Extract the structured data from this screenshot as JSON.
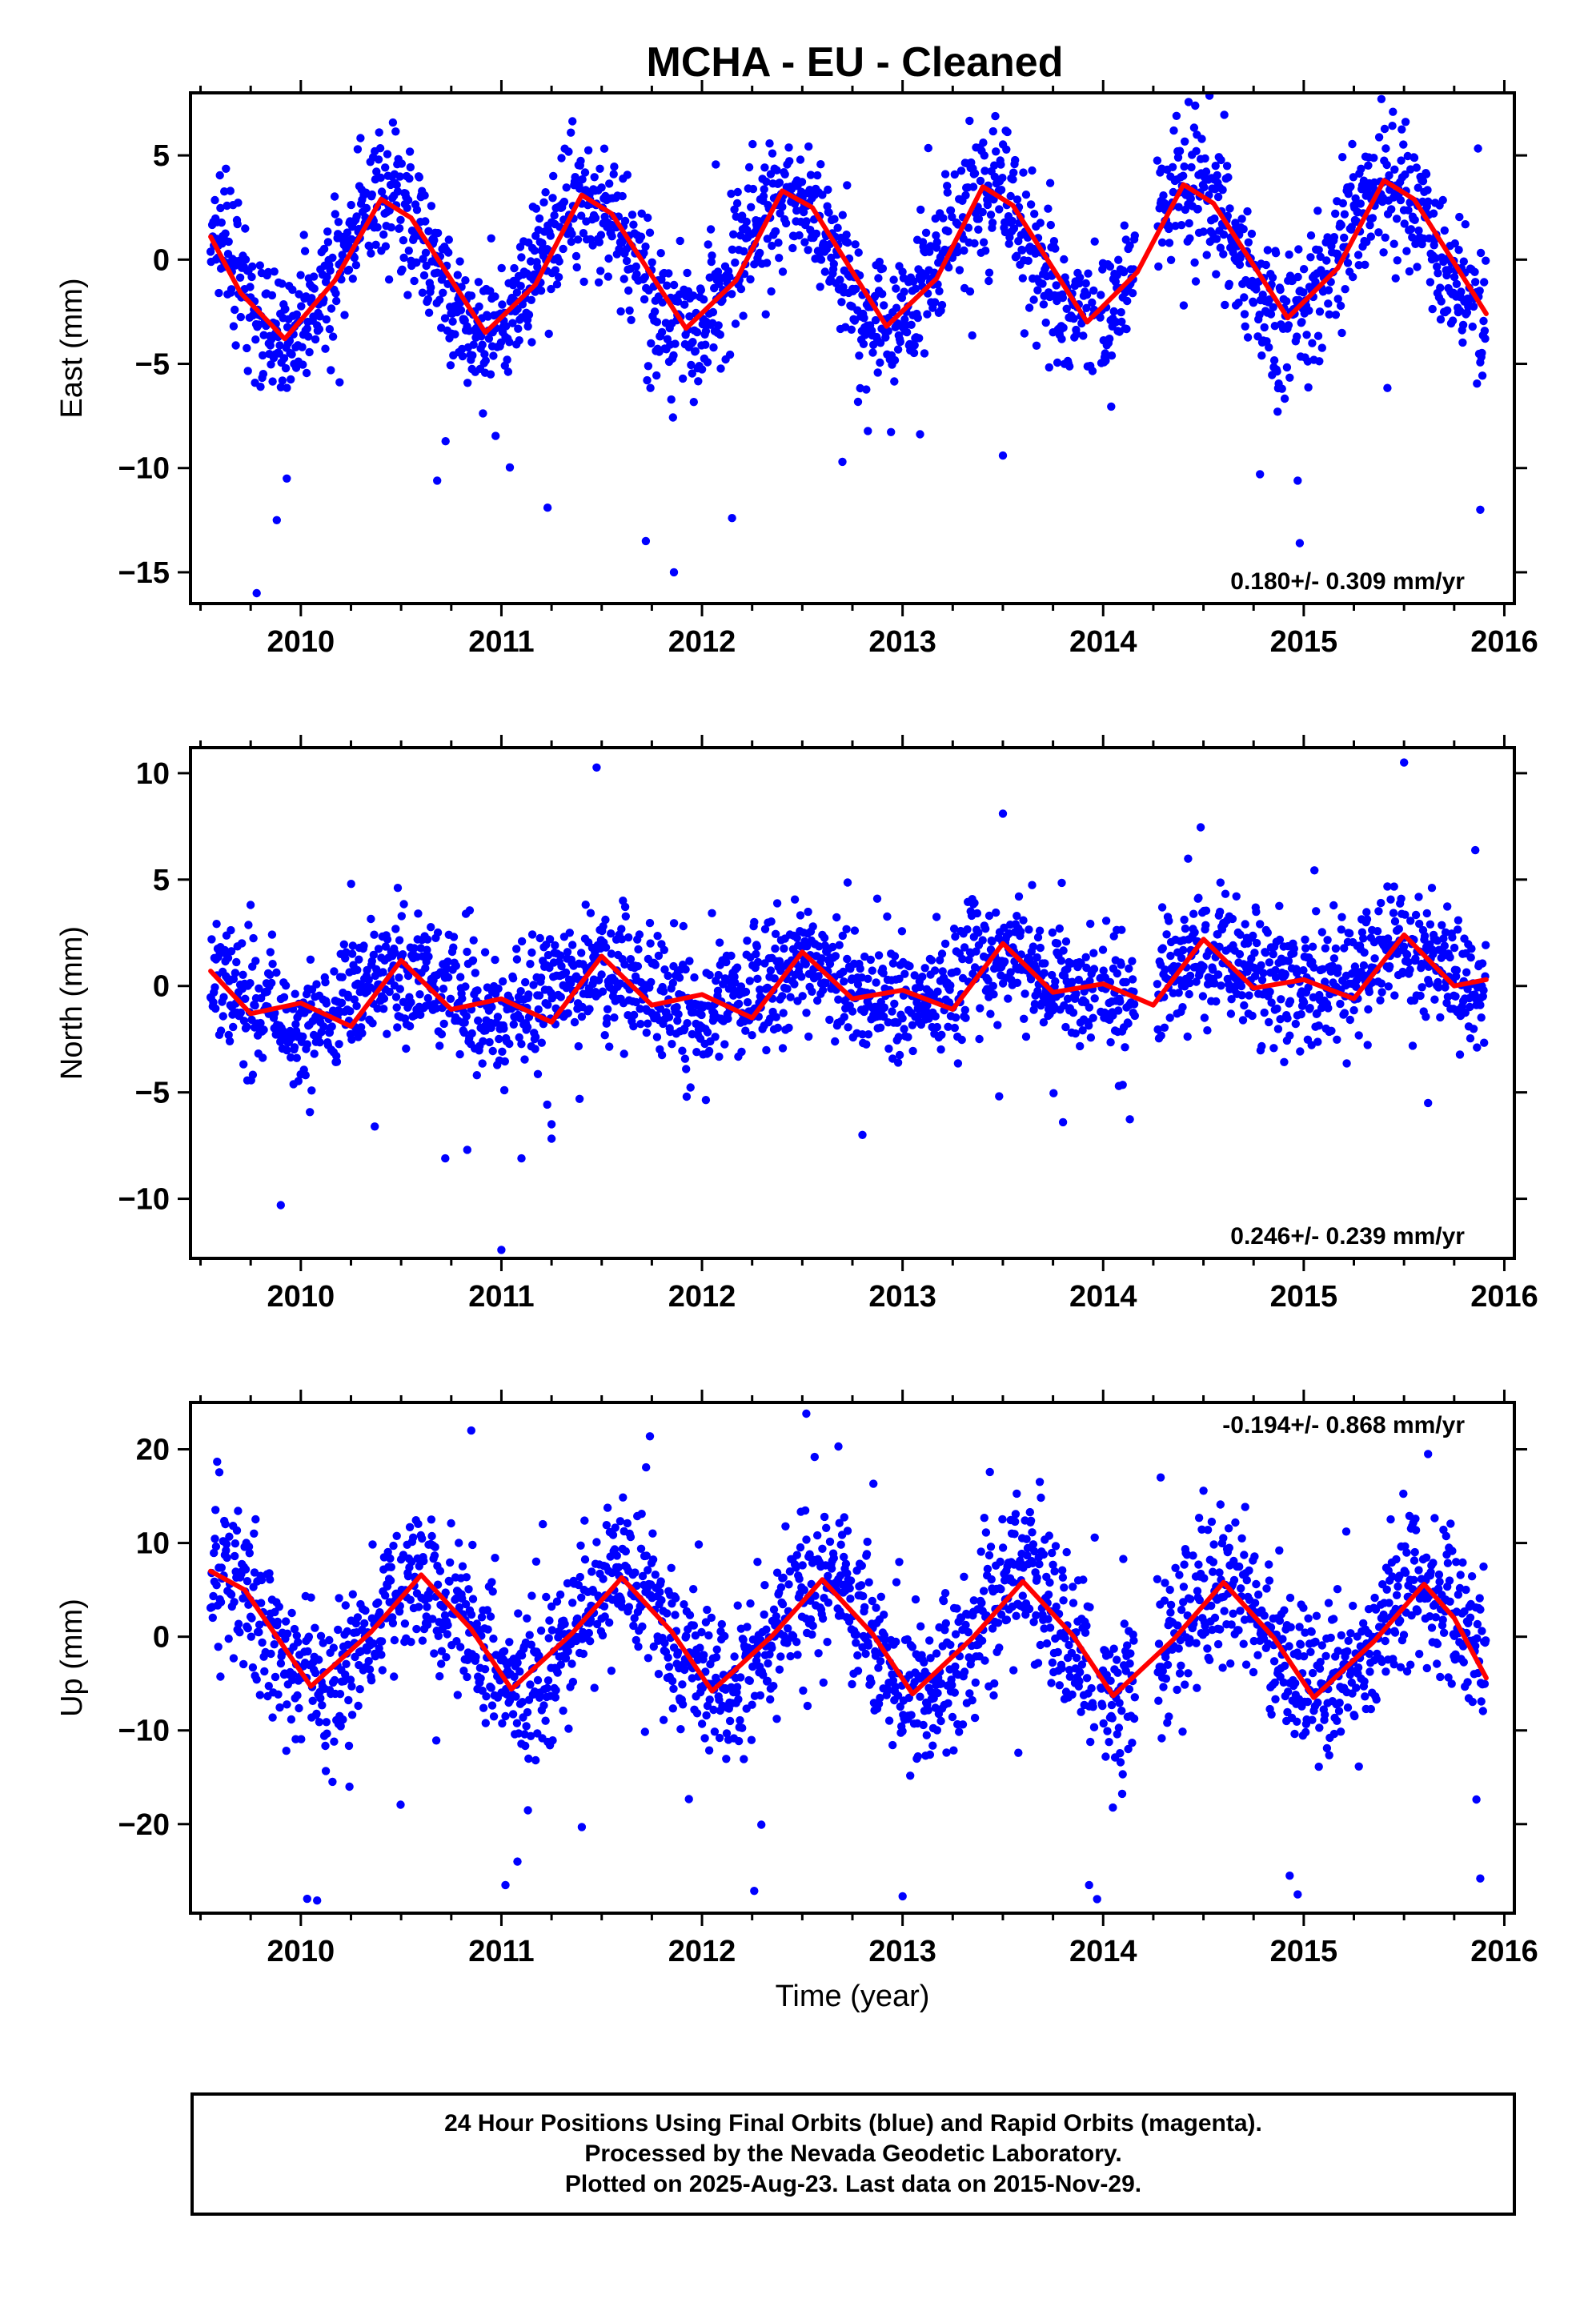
{
  "title": "MCHA  - EU - Cleaned",
  "colors": {
    "points": "#0000ff",
    "fit": "#ff0000",
    "frame": "#000000"
  },
  "footer": {
    "line1": "24 Hour Positions Using Final Orbits (blue) and Rapid Orbits (magenta).",
    "line2": "Processed by the Nevada Geodetic Laboratory.",
    "line3": "Plotted on 2025-Aug-23. Last data on 2015-Nov-29."
  },
  "chart_data": [
    {
      "type": "scatter",
      "component": "east",
      "ylabel": "East (mm)",
      "xlabel": "",
      "xlim": [
        2009.45,
        2016.05
      ],
      "ylim": [
        -16.5,
        8
      ],
      "xticks": [
        2010,
        2011,
        2012,
        2013,
        2014,
        2015,
        2016
      ],
      "xtick_labels": [
        "2010",
        "2011",
        "2012",
        "2013",
        "2014",
        "2015",
        "2016"
      ],
      "yticks": [
        -15,
        -10,
        -5,
        0,
        5
      ],
      "ytick_labels": [
        "−15",
        "−10",
        "−5",
        "0",
        "5"
      ],
      "rate_label": "0.180+/- 0.309 mm/yr",
      "rate_position": "bottom-right",
      "data_span": [
        2009.55,
        2015.91
      ],
      "seasonal": {
        "amplitude": 3.3,
        "phase_peak": 2010.42,
        "trend_mm_per_yr": 0.18,
        "scatter_sd": 1.6
      },
      "outliers": [
        [
          2009.78,
          -16.0
        ],
        [
          2009.88,
          -12.5
        ],
        [
          2009.93,
          -10.5
        ],
        [
          2010.68,
          -10.6
        ],
        [
          2011.23,
          -11.9
        ],
        [
          2011.72,
          -13.5
        ],
        [
          2011.86,
          -15.0
        ],
        [
          2012.15,
          -12.4
        ],
        [
          2014.97,
          -10.6
        ],
        [
          2014.98,
          -13.6
        ],
        [
          2015.88,
          -12.0
        ],
        [
          2012.7,
          -9.7
        ],
        [
          2013.5,
          -9.4
        ]
      ],
      "fit": [
        [
          2009.55,
          1.1
        ],
        [
          2009.7,
          -1.6
        ],
        [
          2009.92,
          -3.8
        ],
        [
          2010.17,
          -1.0
        ],
        [
          2010.4,
          2.9
        ],
        [
          2010.55,
          2.0
        ],
        [
          2010.92,
          -3.5
        ],
        [
          2011.17,
          -1.2
        ],
        [
          2011.4,
          3.1
        ],
        [
          2011.55,
          2.2
        ],
        [
          2011.92,
          -3.3
        ],
        [
          2012.17,
          -1.0
        ],
        [
          2012.4,
          3.3
        ],
        [
          2012.55,
          2.5
        ],
        [
          2012.92,
          -3.2
        ],
        [
          2013.17,
          -0.9
        ],
        [
          2013.4,
          3.5
        ],
        [
          2013.55,
          2.6
        ],
        [
          2013.92,
          -3.0
        ],
        [
          2014.17,
          -0.6
        ],
        [
          2014.4,
          3.6
        ],
        [
          2014.55,
          2.7
        ],
        [
          2014.92,
          -2.8
        ],
        [
          2015.17,
          -0.4
        ],
        [
          2015.4,
          3.8
        ],
        [
          2015.55,
          2.9
        ],
        [
          2015.91,
          -2.6
        ]
      ]
    },
    {
      "type": "scatter",
      "component": "north",
      "ylabel": "North (mm)",
      "xlabel": "",
      "xlim": [
        2009.45,
        2016.05
      ],
      "ylim": [
        -12.8,
        11.2
      ],
      "xticks": [
        2010,
        2011,
        2012,
        2013,
        2014,
        2015,
        2016
      ],
      "xtick_labels": [
        "2010",
        "2011",
        "2012",
        "2013",
        "2014",
        "2015",
        "2016"
      ],
      "yticks": [
        -10,
        -5,
        0,
        5,
        10
      ],
      "ytick_labels": [
        "−10",
        "−5",
        "0",
        "5",
        "10"
      ],
      "rate_label": "0.246+/- 0.239 mm/yr",
      "rate_position": "bottom-right",
      "data_span": [
        2009.55,
        2015.91
      ],
      "seasonal": {
        "amplitude": 1.0,
        "phase_peak": 2010.5,
        "trend_mm_per_yr": 0.25,
        "scatter_sd": 1.4
      },
      "outliers": [
        [
          2009.9,
          -10.3
        ],
        [
          2011.0,
          -12.4
        ],
        [
          2011.1,
          -8.1
        ],
        [
          2010.72,
          -8.1
        ],
        [
          2010.83,
          -7.7
        ],
        [
          2011.25,
          -6.5
        ],
        [
          2013.5,
          8.1
        ],
        [
          2015.5,
          10.5
        ],
        [
          2012.8,
          -7.0
        ],
        [
          2013.8,
          -6.4
        ],
        [
          2015.62,
          -5.5
        ]
      ],
      "fit": [
        [
          2009.55,
          0.7
        ],
        [
          2009.75,
          -1.3
        ],
        [
          2010.0,
          -0.8
        ],
        [
          2010.25,
          -1.9
        ],
        [
          2010.5,
          1.2
        ],
        [
          2010.75,
          -1.1
        ],
        [
          2011.0,
          -0.6
        ],
        [
          2011.25,
          -1.7
        ],
        [
          2011.5,
          1.4
        ],
        [
          2011.75,
          -0.9
        ],
        [
          2012.0,
          -0.4
        ],
        [
          2012.25,
          -1.5
        ],
        [
          2012.5,
          1.6
        ],
        [
          2012.75,
          -0.6
        ],
        [
          2013.0,
          -0.2
        ],
        [
          2013.25,
          -1.1
        ],
        [
          2013.5,
          2.0
        ],
        [
          2013.75,
          -0.3
        ],
        [
          2014.0,
          0.1
        ],
        [
          2014.25,
          -0.9
        ],
        [
          2014.5,
          2.2
        ],
        [
          2014.75,
          -0.1
        ],
        [
          2015.0,
          0.3
        ],
        [
          2015.25,
          -0.6
        ],
        [
          2015.5,
          2.4
        ],
        [
          2015.75,
          0.0
        ],
        [
          2015.91,
          0.3
        ]
      ]
    },
    {
      "type": "scatter",
      "component": "up",
      "ylabel": "Up (mm)",
      "xlabel": "Time (year)",
      "xlim": [
        2009.45,
        2016.05
      ],
      "ylim": [
        -29.5,
        25
      ],
      "xticks": [
        2010,
        2011,
        2012,
        2013,
        2014,
        2015,
        2016
      ],
      "xtick_labels": [
        "2010",
        "2011",
        "2012",
        "2013",
        "2014",
        "2015",
        "2016"
      ],
      "yticks": [
        -20,
        -10,
        0,
        10,
        20
      ],
      "ytick_labels": [
        "−20",
        "−10",
        "0",
        "10",
        "20"
      ],
      "rate_label": "-0.194+/- 0.868 mm/yr",
      "rate_position": "top-right",
      "data_span": [
        2009.55,
        2015.91
      ],
      "seasonal": {
        "amplitude": 6.0,
        "phase_peak": 2010.6,
        "trend_mm_per_yr": -0.19,
        "scatter_sd": 4.0
      },
      "outliers": [
        [
          2010.85,
          22.0
        ],
        [
          2012.52,
          23.8
        ],
        [
          2011.02,
          -26.5
        ],
        [
          2011.08,
          -24.0
        ],
        [
          2013.0,
          -27.7
        ],
        [
          2013.93,
          -26.5
        ],
        [
          2013.97,
          -28.0
        ],
        [
          2014.97,
          -27.5
        ],
        [
          2014.93,
          -25.5
        ],
        [
          2015.88,
          -25.8
        ],
        [
          2015.62,
          19.5
        ],
        [
          2012.68,
          20.3
        ]
      ],
      "fit": [
        [
          2009.55,
          7.0
        ],
        [
          2009.72,
          5.0
        ],
        [
          2010.05,
          -5.3
        ],
        [
          2010.35,
          0.5
        ],
        [
          2010.6,
          6.6
        ],
        [
          2010.85,
          0.8
        ],
        [
          2011.05,
          -5.6
        ],
        [
          2011.35,
          0.3
        ],
        [
          2011.6,
          6.3
        ],
        [
          2011.85,
          0.5
        ],
        [
          2012.05,
          -5.8
        ],
        [
          2012.35,
          0.1
        ],
        [
          2012.6,
          6.1
        ],
        [
          2012.85,
          0.3
        ],
        [
          2013.05,
          -6.1
        ],
        [
          2013.35,
          -0.1
        ],
        [
          2013.6,
          5.9
        ],
        [
          2013.85,
          0.1
        ],
        [
          2014.05,
          -6.3
        ],
        [
          2014.35,
          -0.3
        ],
        [
          2014.6,
          5.8
        ],
        [
          2014.85,
          -0.1
        ],
        [
          2015.05,
          -6.5
        ],
        [
          2015.35,
          -0.5
        ],
        [
          2015.6,
          5.6
        ],
        [
          2015.75,
          2.0
        ],
        [
          2015.91,
          -4.4
        ]
      ]
    }
  ]
}
